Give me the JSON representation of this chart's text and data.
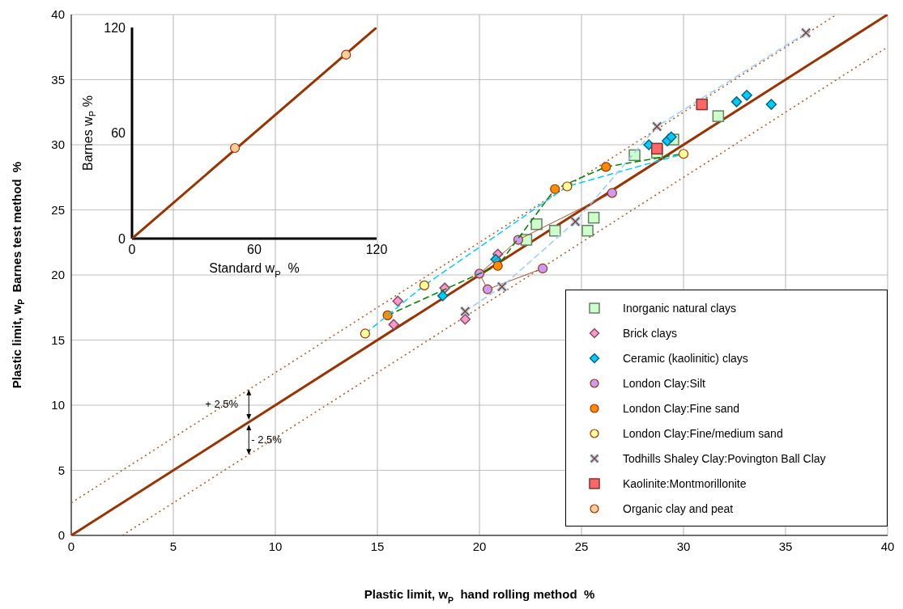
{
  "chart_data": [
    {
      "type": "scatter",
      "xlabel": "Plastic limit, w$_{P}$  hand rolling method  %",
      "ylabel": "Plastic limit, w$_{P}$  Barnes test method  %",
      "xlim": [
        0,
        40
      ],
      "ylim": [
        0,
        40
      ],
      "xticks": [
        0,
        5,
        10,
        15,
        20,
        25,
        30,
        35,
        40
      ],
      "yticks": [
        0,
        5,
        10,
        15,
        20,
        25,
        30,
        35,
        40
      ],
      "grid": true,
      "legend": "bottom right",
      "annotations": [
        {
          "text": "+ 2.5%",
          "x": 8.7,
          "y": 11.2
        },
        {
          "text": "- 2.5%",
          "x": 8.7,
          "y": 6.2
        }
      ],
      "series": [
        {
          "type": "line",
          "color": "#993300",
          "x": [
            0,
            40
          ],
          "values": [
            0,
            40
          ]
        },
        {
          "type": "line",
          "color": "#b5541b",
          "line_style": "dotted",
          "x": [
            0,
            37.5
          ],
          "values": [
            2.5,
            40
          ]
        },
        {
          "type": "line",
          "color": "#b5541b",
          "line_style": "dotted",
          "x": [
            2.5,
            40
          ],
          "values": [
            0,
            37.5
          ]
        },
        {
          "name": "Inorganic natural clays",
          "color": "#ccffcc",
          "marker": "square",
          "x": [
            22.8,
            22.3,
            23.7,
            25.3,
            25.6,
            27.6,
            28.7,
            29.5,
            31.7
          ],
          "values": [
            23.9,
            22.7,
            23.4,
            23.4,
            24.4,
            29.2,
            29.4,
            30.4,
            32.2
          ]
        },
        {
          "name": "Brick clays",
          "color": "#ff99cc",
          "marker": "diamond",
          "x": [
            15.8,
            16.0,
            18.3,
            19.3,
            20.9
          ],
          "values": [
            16.2,
            18.0,
            19.0,
            16.6,
            21.6
          ]
        },
        {
          "name": "Ceramic (kaolinitic) clays",
          "color": "#00ccff",
          "marker": "diamond",
          "x": [
            18.2,
            20.8,
            28.3,
            29.2,
            29.4,
            32.6,
            33.1,
            34.3
          ],
          "values": [
            18.4,
            21.2,
            30.0,
            30.3,
            30.6,
            33.3,
            33.8,
            33.1
          ]
        },
        {
          "type": "line",
          "color": "#a0522d",
          "x": [
            23.1,
            20.4,
            20.0,
            21.9,
            26.5
          ],
          "values": [
            20.5,
            18.9,
            20.1,
            22.7,
            26.3
          ]
        },
        {
          "name": "London Clay:Silt",
          "color": "#cc99ff",
          "marker": "circle",
          "x": [
            20.0,
            20.4,
            21.9,
            23.1,
            26.5
          ],
          "values": [
            20.1,
            18.9,
            22.7,
            20.5,
            26.3
          ]
        },
        {
          "type": "line",
          "color": "#008000",
          "line_style": "dashed",
          "x": [
            15.5,
            20.0,
            20.9,
            23.7,
            26.2,
            29.9
          ],
          "values": [
            16.9,
            20.1,
            20.7,
            26.6,
            28.3,
            29.3
          ]
        },
        {
          "name": "London Clay:Fine sand",
          "color": "#ff8c00",
          "marker": "circle",
          "x": [
            15.5,
            20.9,
            23.7,
            26.2
          ],
          "values": [
            16.9,
            20.7,
            26.6,
            28.3
          ]
        },
        {
          "type": "line",
          "color": "#00ccff",
          "line_style": "dashed",
          "x": [
            14.4,
            17.3,
            24.3,
            30.0
          ],
          "values": [
            15.5,
            19.2,
            26.8,
            29.3
          ]
        },
        {
          "name": "London Clay:Fine/medium sand",
          "color": "#ffff99",
          "marker": "circle",
          "x": [
            14.4,
            17.3,
            24.3,
            30.0
          ],
          "values": [
            15.5,
            19.2,
            26.8,
            29.3
          ]
        },
        {
          "type": "line",
          "line_style": "dashed",
          "name": "Todhills Shaley Clay:Povington Ball Clay",
          "color": "#99ccff",
          "marker": "cross",
          "x": [
            19.3,
            21.1,
            24.7,
            28.7,
            36.0
          ],
          "values": [
            17.2,
            19.1,
            24.1,
            31.4,
            38.6
          ]
        },
        {
          "name": "Kaolinite:Montmorillonite",
          "color": "#ff6666",
          "marker": "square",
          "x": [
            28.7,
            30.9
          ],
          "values": [
            29.7,
            33.1
          ]
        }
      ]
    },
    {
      "type": "scatter",
      "xlabel": "Standard w$_{P}$  %",
      "ylabel": "Barnes w$_{P}$ %",
      "xlim": [
        0,
        120
      ],
      "ylim": [
        0,
        120
      ],
      "xticks": [
        0,
        60,
        120
      ],
      "yticks": [
        0,
        60,
        120
      ],
      "series": [
        {
          "type": "line",
          "color": "#993300",
          "x": [
            0,
            120
          ],
          "values": [
            0,
            120
          ]
        },
        {
          "name": "Organic clay and peat",
          "color": "#ffcc99",
          "marker": "circle",
          "x": [
            50.5,
            105
          ],
          "values": [
            51.5,
            104.5
          ]
        }
      ]
    }
  ]
}
